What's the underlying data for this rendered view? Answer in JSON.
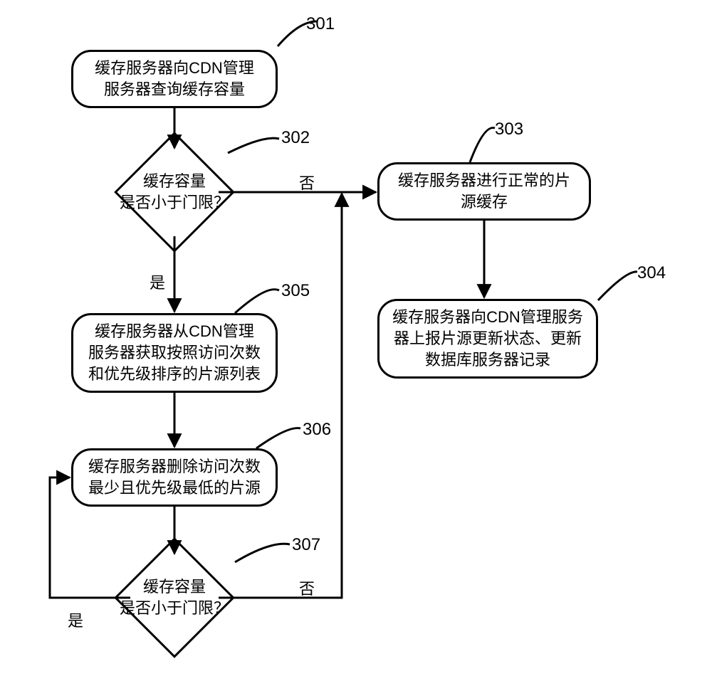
{
  "type": "flowchart",
  "background_color": "#ffffff",
  "stroke_color": "#000000",
  "stroke_width": 3,
  "font_family": "SimSun",
  "node_fontsize": 22,
  "label_fontsize": 24,
  "edge_label_fontsize": 22,
  "nodes": {
    "n301": {
      "num": "301",
      "text": "缓存服务器向CDN管理\n服务器查询缓存容量"
    },
    "n302": {
      "num": "302",
      "text": "缓存容量\n是否小于门限？"
    },
    "n303": {
      "num": "303",
      "text": "缓存服务器进行正常的片\n源缓存"
    },
    "n304": {
      "num": "304",
      "text": "缓存服务器向CDN管理服务\n器上报片源更新状态、更新\n数据库服务器记录"
    },
    "n305": {
      "num": "305",
      "text": "缓存服务器从CDN管理\n服务器获取按照访问次数\n和优先级排序的片源列表"
    },
    "n306": {
      "num": "306",
      "text": "缓存服务器删除访问次数\n最少且优先级最低的片源"
    },
    "n307": {
      "num": "307",
      "text": "缓存容量\n是否小于门限？"
    }
  },
  "edges": {
    "yes": "是",
    "no": "否"
  }
}
